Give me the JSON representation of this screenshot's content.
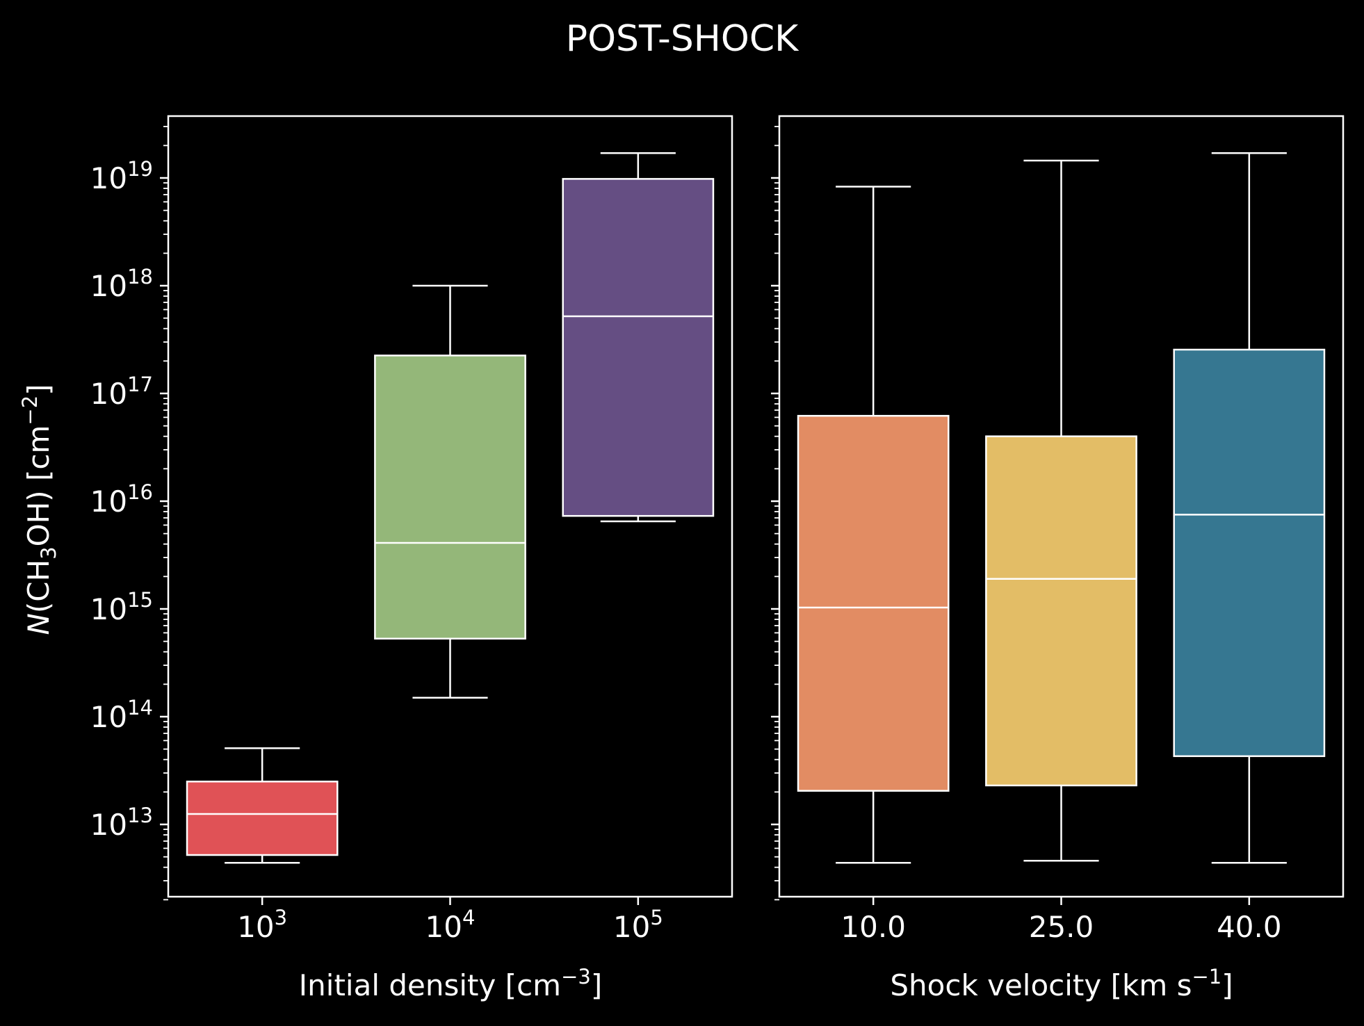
{
  "title": "POST-SHOCK",
  "colors": {
    "background": "#000000",
    "foreground": "#ffffff",
    "box_edge": "#ffffff"
  },
  "y_axis_label": {
    "prefix": "N",
    "open": "(CH",
    "subscript": "3",
    "close": "OH) [cm",
    "superscript": "−2",
    "end": "]"
  },
  "y_tick_labels": [
    {
      "base": "10",
      "exp": "13"
    },
    {
      "base": "10",
      "exp": "14"
    },
    {
      "base": "10",
      "exp": "15"
    },
    {
      "base": "10",
      "exp": "16"
    },
    {
      "base": "10",
      "exp": "17"
    },
    {
      "base": "10",
      "exp": "18"
    },
    {
      "base": "10",
      "exp": "19"
    }
  ],
  "chart_data": [
    {
      "type": "box",
      "title": "",
      "xlabel": {
        "text": "Initial density [cm",
        "sup": "−3",
        "end": "]"
      },
      "ylabel": "N(CH3OH) [cm^-2]",
      "yscale": "log",
      "ylim": [
        2000000000000.0,
        3.5e+19
      ],
      "grid": false,
      "categories": [
        {
          "base": "10",
          "exp": "3"
        },
        {
          "base": "10",
          "exp": "4"
        },
        {
          "base": "10",
          "exp": "5"
        }
      ],
      "boxes": [
        {
          "whisker_low": 4400000000000.0,
          "q1": 5200000000000.0,
          "median": 12500000000000.0,
          "q3": 25000000000000.0,
          "whisker_high": 51000000000000.0,
          "color": "#e05256"
        },
        {
          "whisker_low": 150000000000000.0,
          "q1": 530000000000000.0,
          "median": 4100000000000000.0,
          "q3": 2.25e+17,
          "whisker_high": 1e+18,
          "color": "#94b779"
        },
        {
          "whisker_low": 6500000000000000.0,
          "q1": 7300000000000000.0,
          "median": 5.2e+17,
          "q3": 9.8e+18,
          "whisker_high": 1.7e+19,
          "color": "#654e83"
        }
      ]
    },
    {
      "type": "box",
      "title": "",
      "xlabel": {
        "text": "Shock velocity [km s",
        "sup": "−1",
        "end": "]"
      },
      "yscale": "log",
      "ylim": [
        2000000000000.0,
        3.5e+19
      ],
      "grid": false,
      "shared_y": true,
      "categories": [
        "10.0",
        "25.0",
        "40.0"
      ],
      "boxes": [
        {
          "whisker_low": 4400000000000.0,
          "q1": 20500000000000.0,
          "median": 1030000000000000.0,
          "q3": 6.2e+16,
          "whisker_high": 8.3e+18,
          "color": "#e28c63"
        },
        {
          "whisker_low": 4600000000000.0,
          "q1": 23000000000000.0,
          "median": 1900000000000000.0,
          "q3": 4e+16,
          "whisker_high": 1.45e+19,
          "color": "#e3bd66"
        },
        {
          "whisker_low": 4400000000000.0,
          "q1": 43000000000000.0,
          "median": 7500000000000000.0,
          "q3": 2.55e+17,
          "whisker_high": 1.7e+19,
          "color": "#367791"
        }
      ]
    }
  ]
}
